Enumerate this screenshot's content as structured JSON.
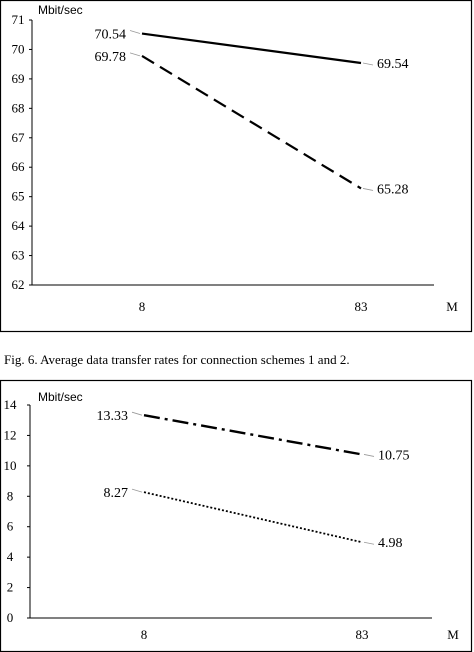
{
  "caption": "Fig. 6.   Average data transfer rates for connection schemes 1 and 2.",
  "chart_data": [
    {
      "type": "line",
      "categories": [
        "8",
        "83"
      ],
      "ylabel": "Mbit/sec",
      "xlabel": "M",
      "ylim": [
        62,
        71
      ],
      "yticks": [
        "62",
        "63",
        "64",
        "65",
        "66",
        "67",
        "68",
        "69",
        "70",
        "71"
      ],
      "grid": false,
      "series": [
        {
          "style": "solid",
          "values": [
            70.54,
            69.54
          ],
          "labels": [
            "70.54",
            "69.54"
          ]
        },
        {
          "style": "dashed",
          "values": [
            69.78,
            65.28
          ],
          "labels": [
            "69.78",
            "65.28"
          ]
        }
      ]
    },
    {
      "type": "line",
      "categories": [
        "8",
        "83"
      ],
      "ylabel": "Mbit/sec",
      "xlabel": "M",
      "ylim": [
        0,
        14
      ],
      "yticks": [
        "0",
        "2",
        "4",
        "6",
        "8",
        "10",
        "12",
        "14"
      ],
      "grid": false,
      "series": [
        {
          "style": "dash-dot",
          "values": [
            13.33,
            10.75
          ],
          "labels": [
            "13.33",
            "10.75"
          ]
        },
        {
          "style": "dotted",
          "values": [
            8.27,
            4.98
          ],
          "labels": [
            "8.27",
            "4.98"
          ]
        }
      ]
    }
  ]
}
